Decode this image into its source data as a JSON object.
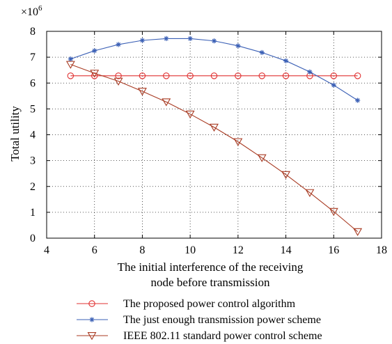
{
  "chart_data": {
    "type": "line",
    "title": "",
    "xlabel": [
      "The initial interference of the receiving",
      "node before transmission"
    ],
    "ylabel": "Total utility",
    "y_multiplier": "×10",
    "y_multiplier_exponent": "6",
    "xlim": [
      4,
      18
    ],
    "ylim": [
      0,
      8
    ],
    "xticks": [
      4,
      6,
      8,
      10,
      12,
      14,
      16,
      18
    ],
    "yticks": [
      0,
      1,
      2,
      3,
      4,
      5,
      6,
      7,
      8
    ],
    "grid": "dotted",
    "legend_position": "below-plot",
    "x": [
      5,
      6,
      7,
      8,
      9,
      10,
      11,
      12,
      13,
      14,
      15,
      16,
      17
    ],
    "series": [
      {
        "name": "The proposed power control algorithm",
        "color": "#e03030",
        "marker": "circle",
        "values": [
          6.28,
          6.28,
          6.28,
          6.28,
          6.28,
          6.28,
          6.28,
          6.28,
          6.28,
          6.28,
          6.28,
          6.28,
          6.28
        ]
      },
      {
        "name": "The just enough transmission power scheme",
        "color": "#3a5fb5",
        "marker": "star",
        "values": [
          6.93,
          7.25,
          7.49,
          7.65,
          7.72,
          7.72,
          7.63,
          7.44,
          7.18,
          6.86,
          6.43,
          5.92,
          5.33
        ]
      },
      {
        "name": "IEEE 802.11 standard power control scheme",
        "color": "#a83a22",
        "marker": "triangle-down",
        "values": [
          6.72,
          6.38,
          6.07,
          5.68,
          5.27,
          4.8,
          4.29,
          3.73,
          3.11,
          2.46,
          1.76,
          1.03,
          0.25
        ]
      }
    ]
  }
}
